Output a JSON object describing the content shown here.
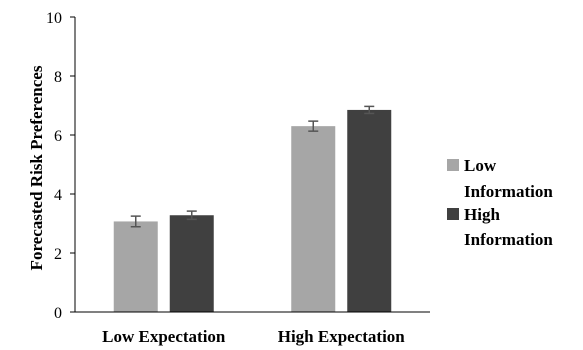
{
  "chart_data": {
    "type": "bar",
    "title": "",
    "xlabel": "",
    "ylabel": "Forecasted Risk Preferences",
    "categories": [
      "Low Expectation",
      "High Expectation"
    ],
    "ylim": [
      0,
      10
    ],
    "yticks": [
      0,
      2,
      4,
      6,
      8,
      10
    ],
    "grid": false,
    "legend_position": "right",
    "series": [
      {
        "name": "Low Information",
        "color": "#a6a6a6",
        "values": [
          3.07,
          6.3
        ],
        "errors": [
          0.18,
          0.17
        ]
      },
      {
        "name": "High Information",
        "color": "#404040",
        "values": [
          3.28,
          6.85
        ],
        "errors": [
          0.14,
          0.12
        ]
      }
    ]
  },
  "legend": {
    "items": [
      {
        "line1": "Low",
        "line2": "Information"
      },
      {
        "line1": "High",
        "line2": "Information"
      }
    ]
  }
}
